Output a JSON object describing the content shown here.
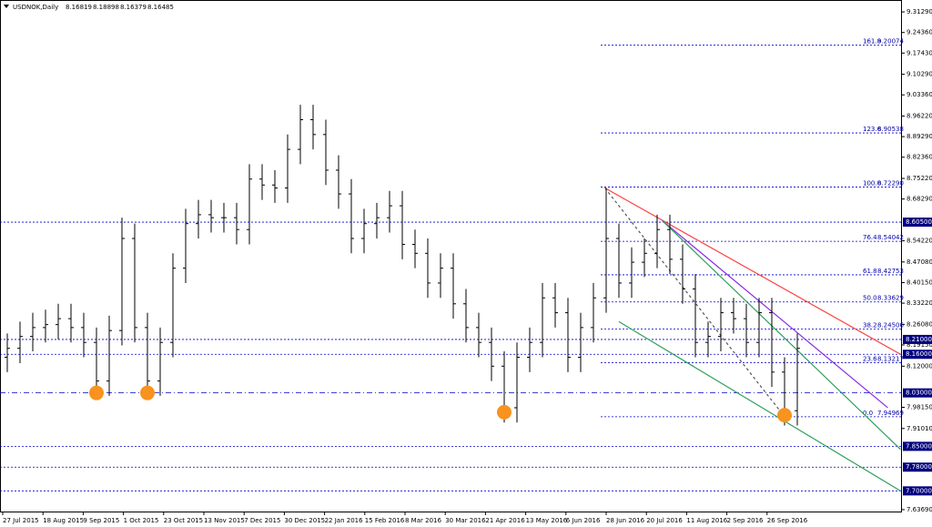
{
  "chart_data": {
    "type": "ohlc",
    "title": "USDNOK,Daily",
    "header_values": [
      8.16819,
      8.18898,
      8.16379,
      8.16485
    ],
    "ylim": [
      7.606,
      9.353
    ],
    "yticks": [
      {
        "value": 9.3129,
        "label": "9.31290"
      },
      {
        "value": 9.2436,
        "label": "9.24360"
      },
      {
        "value": 9.1743,
        "label": "9.17430"
      },
      {
        "value": 9.1029,
        "label": "9.10290"
      },
      {
        "value": 9.0336,
        "label": "9.03360"
      },
      {
        "value": 8.9622,
        "label": "8.96220"
      },
      {
        "value": 8.8929,
        "label": "8.89290"
      },
      {
        "value": 8.8236,
        "label": "8.82360"
      },
      {
        "value": 8.7522,
        "label": "8.75220"
      },
      {
        "value": 8.6829,
        "label": "8.68290"
      },
      {
        "value": 8.5422,
        "label": "8.54220"
      },
      {
        "value": 8.4708,
        "label": "8.47080"
      },
      {
        "value": 8.4015,
        "label": "8.40150"
      },
      {
        "value": 8.3322,
        "label": "8.33220"
      },
      {
        "value": 8.2608,
        "label": "8.26080"
      },
      {
        "value": 8.1915,
        "label": "8.19150"
      },
      {
        "value": 8.12,
        "label": "8.12000"
      },
      {
        "value": 7.9815,
        "label": "7.98150"
      },
      {
        "value": 7.9101,
        "label": "7.91010"
      },
      {
        "value": 7.6369,
        "label": "7.63690"
      }
    ],
    "date_labels": [
      "27 Jul 2015",
      "18 Aug 2015",
      "9 Sep 2015",
      "1 Oct 2015",
      "23 Oct 2015",
      "13 Nov 2015",
      "7 Dec 2015",
      "30 Dec 2015",
      "22 Jan 2016",
      "15 Feb 2016",
      "8 Mar 2016",
      "30 Mar 2016",
      "21 Apr 2016",
      "13 May 2016",
      "6 Jun 2016",
      "28 Jun 2016",
      "20 Jul 2016",
      "11 Aug 2016",
      "2 Sep 2016",
      "26 Sep 2016"
    ],
    "color": "#000000",
    "open": [
      8.15,
      8.18,
      8.22,
      8.25,
      8.26,
      8.28,
      8.25,
      8.2,
      8.07,
      8.24,
      8.55,
      8.25,
      8.07,
      8.2,
      8.45,
      8.6,
      8.63,
      8.62,
      8.62,
      8.58,
      8.75,
      8.73,
      8.72,
      8.85,
      8.95,
      8.9,
      8.78,
      8.7,
      8.55,
      8.6,
      8.62,
      8.66,
      8.53,
      8.5,
      8.4,
      8.45,
      8.33,
      8.25,
      8.2,
      8.12,
      7.98,
      8.15,
      8.2,
      8.35,
      8.3,
      8.15,
      8.25,
      8.35,
      8.55,
      8.4,
      8.47,
      8.5,
      8.58,
      8.48,
      8.38,
      8.2,
      8.22,
      8.3,
      8.28,
      8.2,
      8.3,
      8.1,
      7.97
    ],
    "high": [
      8.23,
      8.27,
      8.3,
      8.31,
      8.33,
      8.33,
      8.3,
      8.25,
      8.29,
      8.62,
      8.6,
      8.3,
      8.25,
      8.5,
      8.65,
      8.68,
      8.68,
      8.67,
      8.67,
      8.8,
      8.8,
      8.78,
      8.9,
      9.0,
      9.0,
      8.95,
      8.83,
      8.75,
      8.65,
      8.67,
      8.71,
      8.71,
      8.58,
      8.55,
      8.5,
      8.5,
      8.38,
      8.3,
      8.25,
      8.17,
      8.2,
      8.25,
      8.4,
      8.4,
      8.35,
      8.3,
      8.4,
      8.72,
      8.6,
      8.52,
      8.55,
      8.63,
      8.63,
      8.53,
      8.43,
      8.27,
      8.35,
      8.35,
      8.33,
      8.35,
      8.35,
      8.15,
      8.23
    ],
    "low": [
      8.1,
      8.13,
      8.17,
      8.2,
      8.21,
      8.2,
      8.15,
      8.02,
      8.02,
      8.19,
      8.2,
      8.02,
      8.02,
      8.15,
      8.4,
      8.55,
      8.57,
      8.57,
      8.53,
      8.53,
      8.68,
      8.67,
      8.67,
      8.8,
      8.85,
      8.73,
      8.65,
      8.5,
      8.5,
      8.55,
      8.57,
      8.48,
      8.45,
      8.35,
      8.35,
      8.28,
      8.2,
      8.15,
      8.07,
      7.93,
      7.93,
      8.1,
      8.15,
      8.25,
      8.1,
      8.1,
      8.2,
      8.3,
      8.35,
      8.35,
      8.42,
      8.45,
      8.43,
      8.33,
      8.15,
      8.15,
      8.17,
      8.23,
      8.15,
      8.15,
      8.05,
      7.92,
      7.92
    ],
    "close": [
      8.18,
      8.22,
      8.25,
      8.26,
      8.28,
      8.25,
      8.2,
      8.07,
      8.24,
      8.55,
      8.25,
      8.07,
      8.2,
      8.45,
      8.6,
      8.63,
      8.62,
      8.62,
      8.58,
      8.75,
      8.73,
      8.72,
      8.85,
      8.95,
      8.9,
      8.78,
      8.7,
      8.55,
      8.6,
      8.62,
      8.66,
      8.53,
      8.5,
      8.4,
      8.45,
      8.33,
      8.25,
      8.2,
      8.12,
      7.98,
      8.15,
      8.2,
      8.35,
      8.3,
      8.15,
      8.25,
      8.35,
      8.55,
      8.4,
      8.47,
      8.5,
      8.58,
      8.48,
      8.38,
      8.2,
      8.22,
      8.3,
      8.28,
      8.2,
      8.3,
      8.1,
      7.97,
      8.18
    ],
    "levels": [
      {
        "value": 8.605,
        "label": "8.60500",
        "style": "dash"
      },
      {
        "value": 8.21,
        "label": "8.21000",
        "style": "dash"
      },
      {
        "value": 8.16,
        "label": "8.16000",
        "style": "dash"
      },
      {
        "value": 8.03,
        "label": "8.03000",
        "style": "dashdot"
      },
      {
        "value": 7.85,
        "label": "7.85000",
        "style": "dash"
      },
      {
        "value": 7.78,
        "label": "7.78000",
        "style": "dash"
      },
      {
        "value": 7.7,
        "label": "7.70000",
        "style": "dash"
      }
    ],
    "fibo": [
      {
        "ratio": "161.8",
        "price": 9.20074,
        "price_label": "9.20074"
      },
      {
        "ratio": "123.6",
        "price": 8.90538,
        "price_label": "8.90538"
      },
      {
        "ratio": "100.0",
        "price": 8.7229,
        "price_label": "8.72290"
      },
      {
        "ratio": "76.4",
        "price": 8.54042,
        "price_label": "8.54042"
      },
      {
        "ratio": "61.8",
        "price": 8.42753,
        "price_label": "8.42753"
      },
      {
        "ratio": "50.0",
        "price": 8.33629,
        "price_label": "8.33629"
      },
      {
        "ratio": "38.2",
        "price": 8.24506,
        "price_label": "8.24506"
      },
      {
        "ratio": "23.6",
        "price": 8.13217,
        "price_label": "8.13217"
      },
      {
        "ratio": "0.0",
        "price": 7.94969,
        "price_label": "7.94969"
      }
    ],
    "trendlines": [
      {
        "from": [
          46.9,
          8.72
        ],
        "to": [
          70.1,
          8.16
        ],
        "color": "#ff4040"
      },
      {
        "from": [
          51.4,
          8.61
        ],
        "to": [
          69.1,
          7.98
        ],
        "color": "#8a2be2"
      },
      {
        "from": [
          51.4,
          8.61
        ],
        "to": [
          70.1,
          7.84
        ],
        "color": "#2e9e5b"
      },
      {
        "from": [
          48,
          8.27
        ],
        "to": [
          70.1,
          7.7
        ],
        "color": "#2e9e5b"
      },
      {
        "from": [
          46.9,
          8.72
        ],
        "to": [
          61,
          7.95
        ],
        "color": "#555555"
      }
    ],
    "markers": [
      {
        "index": 7,
        "price": 8.03
      },
      {
        "index": 11,
        "price": 8.03
      },
      {
        "index": 39,
        "price": 7.965
      },
      {
        "index": 61,
        "price": 7.955
      }
    ],
    "marker_color": "#f7931e",
    "level_color": "#0000cc"
  }
}
